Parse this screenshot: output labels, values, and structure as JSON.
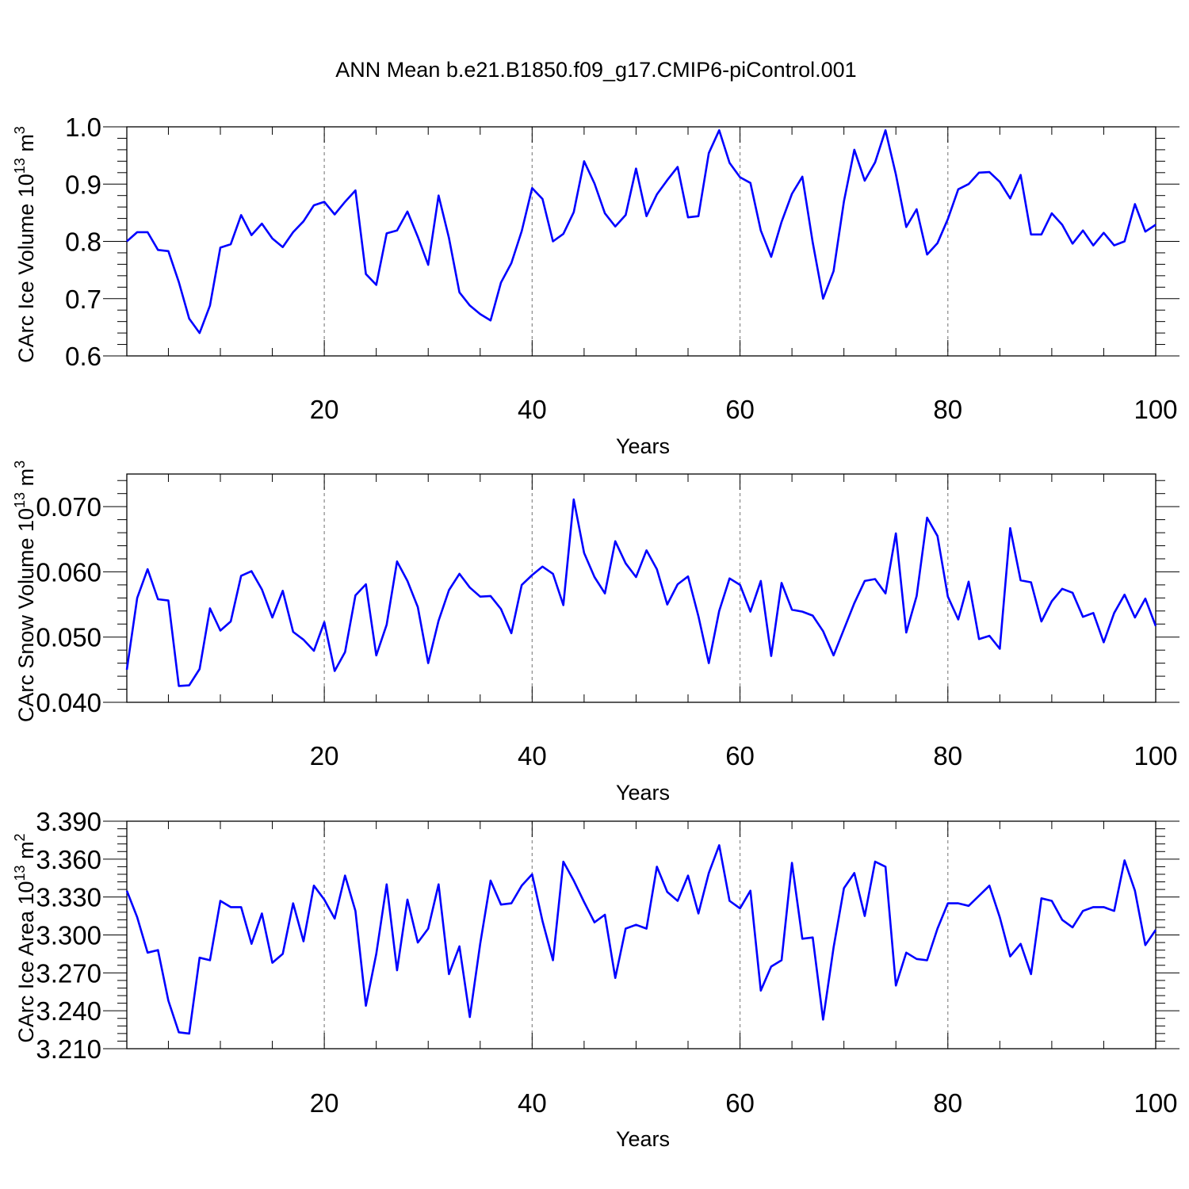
{
  "figure_title": "ANN Mean b.e21.B1850.f09_g17.CMIP6-piControl.001",
  "colors": {
    "series": "#0000ff",
    "axis": "#000000",
    "grid": "#888888"
  },
  "chart_data": [
    {
      "type": "line",
      "title": "ANN Mean b.e21.B1850.f09_g17.CMIP6-piControl.001",
      "xlabel": "Years",
      "ylabel_main": "CArc Ice Volume 10",
      "ylabel_exp": "13",
      "ylabel_unit": " m",
      "ylabel_unit_exp": "3",
      "xlim": [
        1,
        100
      ],
      "ylim": [
        0.6,
        1.0
      ],
      "xticks": [
        20,
        40,
        60,
        80,
        100
      ],
      "yticks": [
        0.6,
        0.7,
        0.8,
        0.9,
        1.0
      ],
      "ytick_labels": [
        "0.6",
        "0.7",
        "0.8",
        "0.9",
        "1.0"
      ],
      "grid": "vertical dashed at 20, 40, 60, 80",
      "x_start": 1,
      "values": [
        0.8,
        0.816,
        0.816,
        0.785,
        0.783,
        0.729,
        0.665,
        0.64,
        0.688,
        0.789,
        0.795,
        0.846,
        0.811,
        0.831,
        0.805,
        0.79,
        0.816,
        0.835,
        0.863,
        0.869,
        0.847,
        0.869,
        0.889,
        0.743,
        0.724,
        0.814,
        0.819,
        0.852,
        0.808,
        0.759,
        0.88,
        0.806,
        0.711,
        0.688,
        0.673,
        0.662,
        0.728,
        0.762,
        0.818,
        0.893,
        0.874,
        0.8,
        0.813,
        0.851,
        0.94,
        0.901,
        0.849,
        0.826,
        0.846,
        0.927,
        0.844,
        0.882,
        0.907,
        0.93,
        0.842,
        0.844,
        0.954,
        0.994,
        0.937,
        0.912,
        0.902,
        0.819,
        0.773,
        0.834,
        0.883,
        0.913,
        0.798,
        0.7,
        0.748,
        0.87,
        0.96,
        0.906,
        0.938,
        0.994,
        0.917,
        0.825,
        0.856,
        0.777,
        0.797,
        0.839,
        0.891,
        0.9,
        0.92,
        0.921,
        0.904,
        0.875,
        0.916,
        0.812,
        0.812,
        0.849,
        0.829,
        0.796,
        0.819,
        0.793,
        0.815,
        0.793,
        0.8,
        0.865,
        0.817,
        0.829
      ]
    },
    {
      "type": "line",
      "title": "",
      "xlabel": "Years",
      "ylabel_main": "CArc Snow Volume 10",
      "ylabel_exp": "13",
      "ylabel_unit": " m",
      "ylabel_unit_exp": "3",
      "xlim": [
        1,
        100
      ],
      "ylim": [
        0.04,
        0.075
      ],
      "xticks": [
        20,
        40,
        60,
        80,
        100
      ],
      "yticks": [
        0.04,
        0.05,
        0.06,
        0.07
      ],
      "ytick_labels": [
        "0.040",
        "0.050",
        "0.060",
        "0.070"
      ],
      "grid": "vertical dashed at 20, 40, 60, 80",
      "x_start": 1,
      "values": [
        0.045,
        0.056,
        0.0604,
        0.0558,
        0.0556,
        0.0425,
        0.0426,
        0.0451,
        0.0544,
        0.051,
        0.0524,
        0.0594,
        0.0601,
        0.0573,
        0.053,
        0.0571,
        0.0508,
        0.0496,
        0.0479,
        0.0523,
        0.0448,
        0.0477,
        0.0564,
        0.0581,
        0.0472,
        0.0519,
        0.0616,
        0.0586,
        0.0546,
        0.046,
        0.0525,
        0.0572,
        0.0597,
        0.0576,
        0.0562,
        0.0563,
        0.0543,
        0.0506,
        0.058,
        0.0595,
        0.0608,
        0.0597,
        0.0549,
        0.0711,
        0.0629,
        0.0592,
        0.0567,
        0.0647,
        0.0613,
        0.0592,
        0.0633,
        0.0604,
        0.055,
        0.0581,
        0.0593,
        0.0532,
        0.046,
        0.054,
        0.059,
        0.058,
        0.0539,
        0.0586,
        0.0471,
        0.0583,
        0.0542,
        0.0539,
        0.0533,
        0.0509,
        0.0472,
        0.0512,
        0.0552,
        0.0586,
        0.0589,
        0.0567,
        0.0659,
        0.0507,
        0.0563,
        0.0683,
        0.0655,
        0.0562,
        0.0527,
        0.0585,
        0.0497,
        0.0502,
        0.0482,
        0.0667,
        0.0587,
        0.0584,
        0.0524,
        0.0555,
        0.0574,
        0.0568,
        0.0531,
        0.0537,
        0.0492,
        0.0537,
        0.0565,
        0.053,
        0.0559,
        0.0517
      ]
    },
    {
      "type": "line",
      "title": "",
      "xlabel": "Years",
      "ylabel_main": "CArc Ice Area 10",
      "ylabel_exp": "13",
      "ylabel_unit": " m",
      "ylabel_unit_exp": "2",
      "xlim": [
        1,
        100
      ],
      "ylim": [
        3.21,
        3.39
      ],
      "xticks": [
        20,
        40,
        60,
        80,
        100
      ],
      "yticks": [
        3.21,
        3.24,
        3.27,
        3.3,
        3.33,
        3.36,
        3.39
      ],
      "ytick_labels": [
        "3.210",
        "3.240",
        "3.270",
        "3.300",
        "3.330",
        "3.360",
        "3.390"
      ],
      "grid": "vertical dashed at 20, 40, 60, 80",
      "x_start": 1,
      "values": [
        3.335,
        3.314,
        3.286,
        3.288,
        3.248,
        3.223,
        3.222,
        3.282,
        3.28,
        3.327,
        3.322,
        3.322,
        3.293,
        3.317,
        3.278,
        3.285,
        3.325,
        3.295,
        3.339,
        3.328,
        3.313,
        3.347,
        3.319,
        3.244,
        3.285,
        3.34,
        3.272,
        3.328,
        3.294,
        3.305,
        3.34,
        3.269,
        3.291,
        3.235,
        3.293,
        3.343,
        3.324,
        3.325,
        3.339,
        3.348,
        3.311,
        3.28,
        3.358,
        3.343,
        3.326,
        3.31,
        3.316,
        3.266,
        3.305,
        3.308,
        3.305,
        3.354,
        3.334,
        3.327,
        3.347,
        3.317,
        3.349,
        3.371,
        3.327,
        3.321,
        3.335,
        3.256,
        3.275,
        3.28,
        3.357,
        3.297,
        3.298,
        3.233,
        3.29,
        3.337,
        3.349,
        3.315,
        3.358,
        3.354,
        3.26,
        3.286,
        3.281,
        3.28,
        3.305,
        3.325,
        3.325,
        3.323,
        3.331,
        3.339,
        3.314,
        3.283,
        3.293,
        3.269,
        3.329,
        3.327,
        3.312,
        3.306,
        3.319,
        3.322,
        3.322,
        3.319,
        3.359,
        3.335,
        3.292,
        3.304
      ]
    }
  ]
}
